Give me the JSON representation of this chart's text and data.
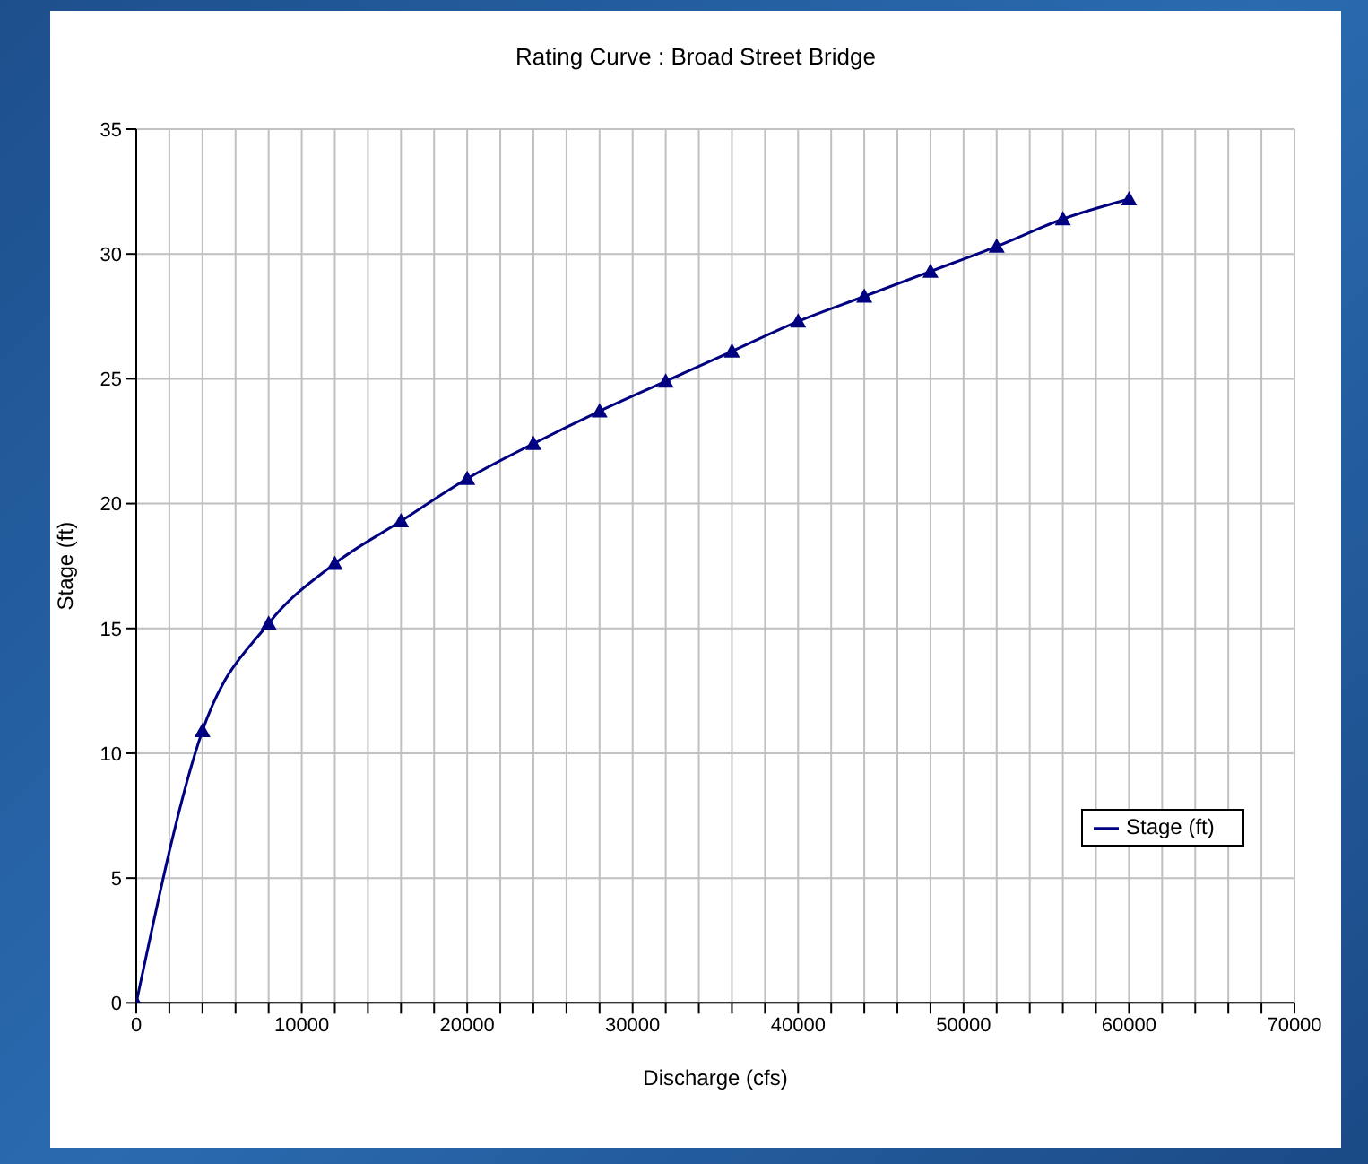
{
  "chart_data": {
    "type": "line",
    "title": "Rating Curve : Broad Street Bridge",
    "xlabel": "Discharge (cfs)",
    "ylabel": "Stage (ft)",
    "x": [
      0,
      4000,
      8000,
      12000,
      16000,
      20000,
      24000,
      28000,
      32000,
      36000,
      40000,
      44000,
      48000,
      52000,
      56000,
      60000
    ],
    "series": [
      {
        "name": "Stage (ft)",
        "color": "#000080",
        "values": [
          0,
          10.9,
          15.2,
          17.6,
          19.3,
          21.0,
          22.4,
          23.7,
          24.9,
          26.1,
          27.3,
          28.3,
          29.3,
          30.3,
          31.4,
          32.2
        ]
      }
    ],
    "xlim": [
      0,
      70000
    ],
    "xticks": [
      0,
      {
        "value": 2000,
        "label": null
      },
      {
        "value": 4000,
        "label": null
      },
      {
        "value": 6000,
        "label": null
      },
      {
        "value": 8000,
        "label": null
      },
      10000,
      {
        "value": 12000,
        "label": null
      },
      {
        "value": 14000,
        "label": null
      },
      {
        "value": 16000,
        "label": null
      },
      {
        "value": 18000,
        "label": null
      },
      20000,
      {
        "value": 22000,
        "label": null
      },
      {
        "value": 24000,
        "label": null
      },
      {
        "value": 26000,
        "label": null
      },
      {
        "value": 28000,
        "label": null
      },
      30000,
      {
        "value": 32000,
        "label": null
      },
      {
        "value": 34000,
        "label": null
      },
      {
        "value": 36000,
        "label": null
      },
      {
        "value": 38000,
        "label": null
      },
      40000,
      {
        "value": 42000,
        "label": null
      },
      {
        "value": 44000,
        "label": null
      },
      {
        "value": 46000,
        "label": null
      },
      {
        "value": 48000,
        "label": null
      },
      50000,
      {
        "value": 52000,
        "label": null
      },
      {
        "value": 54000,
        "label": null
      },
      {
        "value": 56000,
        "label": null
      },
      {
        "value": 58000,
        "label": null
      },
      60000,
      {
        "value": 62000,
        "label": null
      },
      {
        "value": 64000,
        "label": null
      },
      {
        "value": 66000,
        "label": null
      },
      {
        "value": 68000,
        "label": null
      },
      70000
    ],
    "ylim": [
      0,
      35
    ],
    "yticks": [
      0,
      5,
      10,
      15,
      20,
      25,
      30,
      35
    ],
    "grid": true,
    "legend": "bottom right",
    "marker": "triangle",
    "line_style": "solid"
  }
}
